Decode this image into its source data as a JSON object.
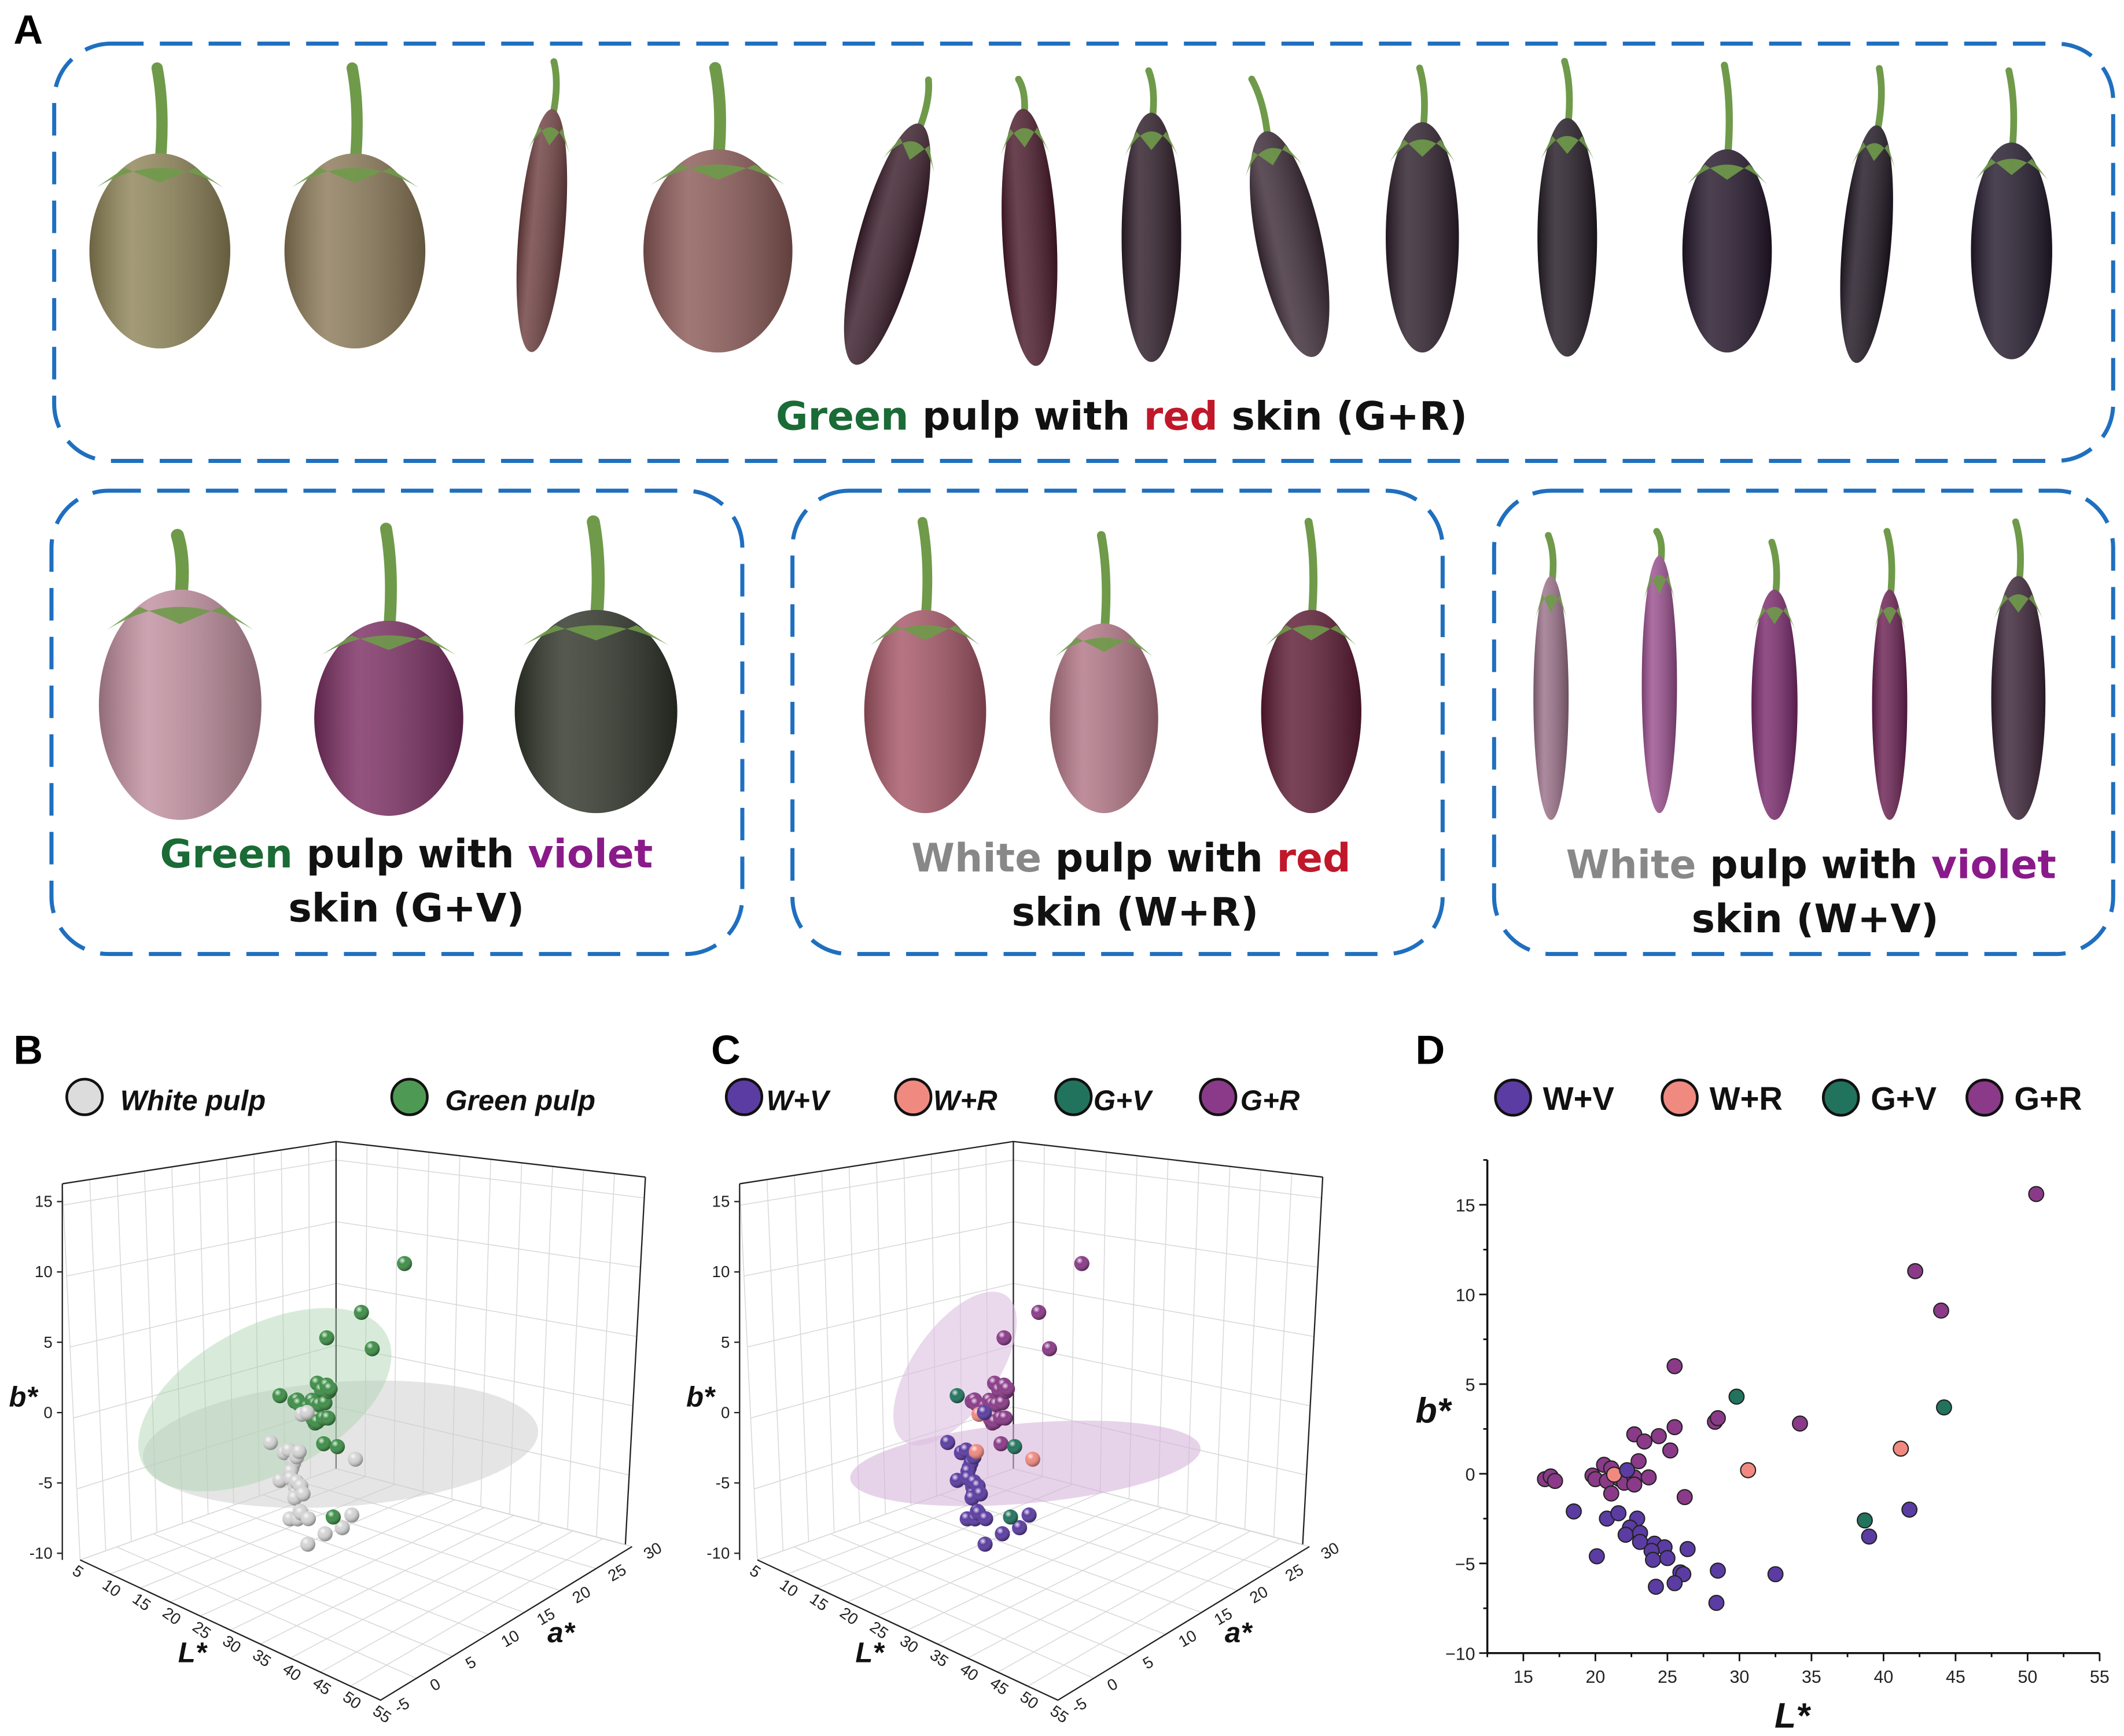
{
  "panel_a": {
    "label": "A",
    "groups": [
      {
        "id": "gr",
        "caption": [
          {
            "t": "Green",
            "c": "#1a6b35"
          },
          {
            "t": " pulp with ",
            "c": "#111111"
          },
          {
            "t": "red",
            "c": "#c0182a"
          },
          {
            "t": " skin (G+R)",
            "c": "#111111"
          }
        ],
        "caption2": [],
        "fruit_colors": [
          "#8f8458",
          "#8c7a58",
          "#6e3f40",
          "#8b5a57",
          "#3a1d2a",
          "#4a1a2a",
          "#2e1c28",
          "#3c2a36",
          "#2d1f2b",
          "#231a24",
          "#24162a",
          "#1f1622",
          "#241a2c"
        ]
      },
      {
        "id": "gv",
        "caption": [
          {
            "t": "Green",
            "c": "#1a6b35"
          },
          {
            "t": " pulp with ",
            "c": "#111111"
          },
          {
            "t": "violet",
            "c": "#8a1a8a"
          }
        ],
        "caption2": [
          {
            "t": "skin (G+V)",
            "c": "#111111"
          }
        ],
        "fruit_colors": [
          "#c18f9f",
          "#7b2e62",
          "#2f3429"
        ]
      },
      {
        "id": "wr",
        "caption": [
          {
            "t": "White",
            "c": "#888888"
          },
          {
            "t": " pulp with ",
            "c": "#111111"
          },
          {
            "t": "red",
            "c": "#c0182a"
          }
        ],
        "caption2": [
          {
            "t": "skin (W+R)",
            "c": "#111111"
          }
        ],
        "fruit_colors": [
          "#a65667",
          "#b27585",
          "#5d1b33"
        ]
      },
      {
        "id": "wv",
        "caption": [
          {
            "t": "White",
            "c": "#888888"
          },
          {
            "t": " pulp with ",
            "c": "#111111"
          },
          {
            "t": "violet",
            "c": "#8a1a8a"
          }
        ],
        "caption2": [
          {
            "t": "skin (W+V)",
            "c": "#111111"
          }
        ],
        "fruit_colors": [
          "#9a7088",
          "#9a4f8e",
          "#7a2a6c",
          "#6a2052",
          "#3a2236"
        ]
      }
    ]
  },
  "colors": {
    "W+V": "#5b3ca2",
    "W+R": "#f08a80",
    "G+V": "#22735e",
    "G+R": "#8a3a88",
    "white_pulp": "#dcdcdc",
    "green_pulp": "#4e9a55",
    "calyx": "#6f9a4a",
    "box": "#1f6fbf"
  },
  "chart_data": [
    {
      "panel": "B",
      "type": "scatter3d",
      "legend": [
        {
          "key": "white_pulp",
          "label": "White pulp"
        },
        {
          "key": "green_pulp",
          "label": "Green pulp"
        }
      ],
      "xlabel": "L*",
      "ylabel": "a*",
      "zlabel": "b*",
      "xlim": [
        5,
        55
      ],
      "ylim": [
        -5,
        30
      ],
      "zlim": [
        -10,
        15
      ],
      "xticks": [
        "5",
        "10",
        "15",
        "20",
        "25",
        "30",
        "35",
        "40",
        "45",
        "50",
        "55"
      ],
      "yticks": [
        "-5",
        "0",
        "5",
        "10",
        "15",
        "20",
        "25",
        "30"
      ],
      "zticks": [
        "-10",
        "-5",
        "0",
        "5",
        "10",
        "15"
      ],
      "grouping": {
        "white_pulp": [
          "W+V",
          "W+R"
        ],
        "green_pulp": [
          "G+R",
          "G+V"
        ]
      }
    },
    {
      "panel": "C",
      "type": "scatter3d",
      "legend": [
        {
          "key": "W+V",
          "label": "W+V"
        },
        {
          "key": "W+R",
          "label": "W+R"
        },
        {
          "key": "G+V",
          "label": "G+V"
        },
        {
          "key": "G+R",
          "label": "G+R"
        }
      ],
      "xlabel": "L*",
      "ylabel": "a*",
      "zlabel": "b*",
      "xlim": [
        5,
        55
      ],
      "ylim": [
        -5,
        30
      ],
      "zlim": [
        -10,
        15
      ],
      "xticks": [
        "5",
        "10",
        "15",
        "20",
        "25",
        "30",
        "35",
        "40",
        "45",
        "50",
        "55"
      ],
      "yticks": [
        "-5",
        "0",
        "5",
        "10",
        "15",
        "20",
        "25",
        "30"
      ],
      "zticks": [
        "-10",
        "-5",
        "0",
        "5",
        "10",
        "15"
      ]
    },
    {
      "panel": "D",
      "type": "scatter",
      "legend": [
        {
          "key": "W+V",
          "label": "W+V"
        },
        {
          "key": "W+R",
          "label": "W+R"
        },
        {
          "key": "G+V",
          "label": "G+V"
        },
        {
          "key": "G+R",
          "label": "G+R"
        }
      ],
      "xlabel": "L*",
      "ylabel": "b*",
      "xlim": [
        12.5,
        55
      ],
      "ylim": [
        -10,
        17.5
      ],
      "xticks": [
        "15",
        "20",
        "25",
        "30",
        "35",
        "40",
        "45",
        "50",
        "55"
      ],
      "yticks": [
        "-10",
        "-5",
        "0",
        "5",
        "10",
        "15"
      ],
      "points_fields": [
        "L",
        "a",
        "b",
        "group"
      ],
      "points": [
        [
          50.6,
          2,
          15.6,
          "G+R"
        ],
        [
          42.2,
          3,
          11.3,
          "G+R"
        ],
        [
          44.0,
          3,
          9.1,
          "G+R"
        ],
        [
          25.5,
          12,
          6.0,
          "G+R"
        ],
        [
          34.2,
          5,
          2.8,
          "G+R"
        ],
        [
          28.3,
          10,
          2.9,
          "G+R"
        ],
        [
          28.5,
          10,
          3.1,
          "G+R"
        ],
        [
          25.5,
          12,
          2.6,
          "G+R"
        ],
        [
          22.7,
          13,
          2.2,
          "G+R"
        ],
        [
          23.4,
          13,
          1.8,
          "G+R"
        ],
        [
          24.4,
          13,
          2.1,
          "G+R"
        ],
        [
          25.2,
          12,
          1.3,
          "G+R"
        ],
        [
          23.0,
          13,
          0.7,
          "G+R"
        ],
        [
          20.6,
          14,
          0.5,
          "G+R"
        ],
        [
          21.1,
          14,
          0.3,
          "G+R"
        ],
        [
          26.2,
          11,
          -1.3,
          "G+R"
        ],
        [
          16.5,
          15,
          -0.3,
          "G+R"
        ],
        [
          16.9,
          15,
          -0.15,
          "G+R"
        ],
        [
          17.2,
          15,
          -0.4,
          "G+R"
        ],
        [
          19.8,
          14,
          -0.1,
          "G+R"
        ],
        [
          20.0,
          14,
          -0.3,
          "G+R"
        ],
        [
          20.8,
          14,
          -0.4,
          "G+R"
        ],
        [
          21.1,
          14,
          -1.1,
          "G+R"
        ],
        [
          21.7,
          13,
          -0.3,
          "G+R"
        ],
        [
          22.0,
          13,
          -0.5,
          "G+R"
        ],
        [
          22.7,
          13,
          -0.2,
          "G+R"
        ],
        [
          22.7,
          13,
          -0.6,
          "G+R"
        ],
        [
          23.7,
          13,
          -0.2,
          "G+R"
        ],
        [
          30.6,
          4,
          0.2,
          "W+R"
        ],
        [
          41.2,
          3,
          1.4,
          "W+R"
        ],
        [
          21.3,
          12,
          -0.05,
          "W+R"
        ],
        [
          29.8,
          2,
          4.3,
          "G+V"
        ],
        [
          44.2,
          -2,
          3.7,
          "G+V"
        ],
        [
          38.7,
          2,
          -2.6,
          "G+V"
        ],
        [
          22.2,
          12,
          0.2,
          "W+V"
        ],
        [
          18.5,
          10,
          -2.1,
          "W+V"
        ],
        [
          20.8,
          10,
          -2.5,
          "W+V"
        ],
        [
          21.6,
          10,
          -2.2,
          "W+V"
        ],
        [
          22.9,
          10,
          -2.5,
          "W+V"
        ],
        [
          22.4,
          10,
          -3.0,
          "W+V"
        ],
        [
          22.1,
          10,
          -3.4,
          "W+V"
        ],
        [
          23.1,
          9,
          -3.3,
          "W+V"
        ],
        [
          23.1,
          9,
          -3.8,
          "W+V"
        ],
        [
          20.1,
          10,
          -4.6,
          "W+V"
        ],
        [
          24.1,
          9,
          -3.9,
          "W+V"
        ],
        [
          24.8,
          9,
          -4.1,
          "W+V"
        ],
        [
          23.9,
          9,
          -4.3,
          "W+V"
        ],
        [
          24.0,
          9,
          -4.8,
          "W+V"
        ],
        [
          25.0,
          8,
          -4.7,
          "W+V"
        ],
        [
          26.4,
          8,
          -4.2,
          "W+V"
        ],
        [
          25.9,
          8,
          -5.5,
          "W+V"
        ],
        [
          26.1,
          8,
          -5.6,
          "W+V"
        ],
        [
          24.2,
          8,
          -6.3,
          "W+V"
        ],
        [
          25.5,
          8,
          -6.1,
          "W+V"
        ],
        [
          28.5,
          7,
          -5.4,
          "W+V"
        ],
        [
          28.4,
          7,
          -7.2,
          "W+V"
        ],
        [
          32.5,
          6,
          -5.6,
          "W+V"
        ],
        [
          41.8,
          2,
          -2.0,
          "W+V"
        ],
        [
          39.0,
          3,
          -3.5,
          "W+V"
        ]
      ]
    }
  ]
}
